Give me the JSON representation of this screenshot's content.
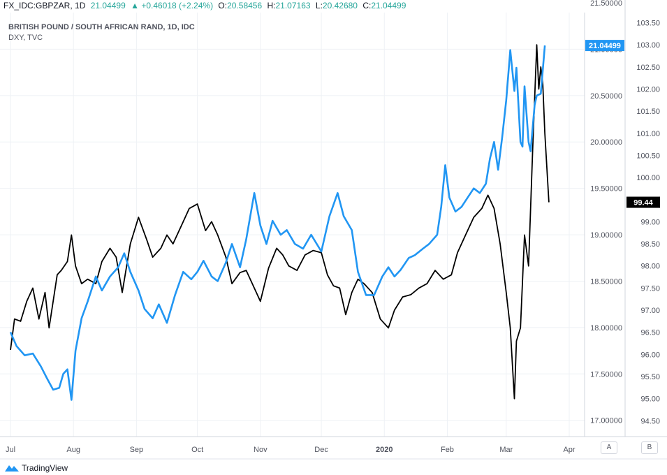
{
  "header": {
    "symbol": "FX_IDC:GBPZAR, 1D",
    "last": "21.04499",
    "change": "▲ +0.46018 (+2.24%)",
    "open_label": "O:",
    "open": "20.58456",
    "high_label": "H:",
    "high": "21.07163",
    "low_label": "L:",
    "low": "20.42680",
    "close_label": "C:",
    "close": "21.04499"
  },
  "legend": {
    "line1": "BRITISH POUND / SOUTH AFRICAN RAND, 1D, IDC",
    "line2": "DXY, TVC"
  },
  "price_badges": {
    "gbpzar": "21.04499",
    "dxy": "99.44"
  },
  "axis_buttons": {
    "a": "A",
    "b": "B"
  },
  "footer": {
    "brand": "TradingView"
  },
  "colors": {
    "gbpzar": "#2196f3",
    "dxy": "#000000",
    "grid": "#eef1f5",
    "up": "#26a69a"
  },
  "chart_data": {
    "type": "line",
    "x_tick_labels": [
      "Jul",
      "Aug",
      "Sep",
      "Oct",
      "Nov",
      "Dec",
      "2020",
      "Feb",
      "Mar",
      "Apr"
    ],
    "y_left": {
      "ticks": [
        "17.00000",
        "17.50000",
        "18.00000",
        "18.50000",
        "19.00000",
        "19.50000",
        "20.00000",
        "20.50000",
        "21.00000",
        "21.50000"
      ],
      "range": [
        16.9,
        21.5
      ]
    },
    "y_right": {
      "ticks": [
        "94.50",
        "95.00",
        "95.50",
        "96.00",
        "96.50",
        "97.00",
        "97.50",
        "98.00",
        "98.50",
        "99.00",
        "99.50",
        "100.00",
        "100.50",
        "101.00",
        "101.50",
        "102.00",
        "102.50",
        "103.00",
        "103.50"
      ],
      "range": [
        94.3,
        103.95
      ]
    },
    "series": [
      {
        "name": "BRITISH POUND / SOUTH AFRICAN RAND, 1D, IDC",
        "axis": "left",
        "points": [
          [
            "2019-07-01",
            17.95
          ],
          [
            "2019-07-04",
            17.8
          ],
          [
            "2019-07-08",
            17.7
          ],
          [
            "2019-07-12",
            17.72
          ],
          [
            "2019-07-16",
            17.58
          ],
          [
            "2019-07-19",
            17.45
          ],
          [
            "2019-07-22",
            17.33
          ],
          [
            "2019-07-25",
            17.35
          ],
          [
            "2019-07-27",
            17.5
          ],
          [
            "2019-07-29",
            17.55
          ],
          [
            "2019-07-31",
            17.22
          ],
          [
            "2019-08-02",
            17.75
          ],
          [
            "2019-08-05",
            18.1
          ],
          [
            "2019-08-08",
            18.28
          ],
          [
            "2019-08-12",
            18.55
          ],
          [
            "2019-08-15",
            18.4
          ],
          [
            "2019-08-19",
            18.55
          ],
          [
            "2019-08-23",
            18.65
          ],
          [
            "2019-08-26",
            18.8
          ],
          [
            "2019-08-29",
            18.6
          ],
          [
            "2019-09-02",
            18.4
          ],
          [
            "2019-09-05",
            18.2
          ],
          [
            "2019-09-09",
            18.1
          ],
          [
            "2019-09-12",
            18.25
          ],
          [
            "2019-09-16",
            18.05
          ],
          [
            "2019-09-20",
            18.35
          ],
          [
            "2019-09-24",
            18.6
          ],
          [
            "2019-09-28",
            18.52
          ],
          [
            "2019-10-01",
            18.6
          ],
          [
            "2019-10-04",
            18.72
          ],
          [
            "2019-10-08",
            18.55
          ],
          [
            "2019-10-11",
            18.5
          ],
          [
            "2019-10-15",
            18.7
          ],
          [
            "2019-10-18",
            18.9
          ],
          [
            "2019-10-22",
            18.65
          ],
          [
            "2019-10-25",
            18.95
          ],
          [
            "2019-10-29",
            19.45
          ],
          [
            "2019-11-01",
            19.1
          ],
          [
            "2019-11-04",
            18.9
          ],
          [
            "2019-11-07",
            19.15
          ],
          [
            "2019-11-11",
            19.0
          ],
          [
            "2019-11-14",
            19.05
          ],
          [
            "2019-11-18",
            18.9
          ],
          [
            "2019-11-22",
            18.85
          ],
          [
            "2019-11-26",
            19.0
          ],
          [
            "2019-12-01",
            18.82
          ],
          [
            "2019-12-05",
            19.2
          ],
          [
            "2019-12-09",
            19.45
          ],
          [
            "2019-12-12",
            19.2
          ],
          [
            "2019-12-16",
            19.05
          ],
          [
            "2019-12-19",
            18.6
          ],
          [
            "2019-12-23",
            18.35
          ],
          [
            "2019-12-27",
            18.35
          ],
          [
            "2019-12-31",
            18.55
          ],
          [
            "2020-01-03",
            18.65
          ],
          [
            "2020-01-06",
            18.55
          ],
          [
            "2020-01-09",
            18.62
          ],
          [
            "2020-01-13",
            18.75
          ],
          [
            "2020-01-16",
            18.78
          ],
          [
            "2020-01-20",
            18.85
          ],
          [
            "2020-01-23",
            18.9
          ],
          [
            "2020-01-27",
            19.0
          ],
          [
            "2020-01-29",
            19.3
          ],
          [
            "2020-01-31",
            19.75
          ],
          [
            "2020-02-02",
            19.4
          ],
          [
            "2020-02-05",
            19.25
          ],
          [
            "2020-02-08",
            19.3
          ],
          [
            "2020-02-11",
            19.4
          ],
          [
            "2020-02-14",
            19.5
          ],
          [
            "2020-02-17",
            19.45
          ],
          [
            "2020-02-20",
            19.55
          ],
          [
            "2020-02-22",
            19.82
          ],
          [
            "2020-02-24",
            20.0
          ],
          [
            "2020-02-26",
            19.7
          ],
          [
            "2020-02-28",
            20.05
          ],
          [
            "2020-03-01",
            20.45
          ],
          [
            "2020-03-03",
            20.99
          ],
          [
            "2020-03-05",
            20.55
          ],
          [
            "2020-03-06",
            20.8
          ],
          [
            "2020-03-08",
            20.0
          ],
          [
            "2020-03-09",
            19.95
          ],
          [
            "2020-03-10",
            20.6
          ],
          [
            "2020-03-12",
            20.0
          ],
          [
            "2020-03-13",
            19.9
          ],
          [
            "2020-03-15",
            20.4
          ],
          [
            "2020-03-16",
            20.5
          ],
          [
            "2020-03-18",
            20.52
          ],
          [
            "2020-03-20",
            21.04
          ]
        ]
      },
      {
        "name": "DXY, TVC",
        "axis": "right",
        "points": [
          [
            "2019-07-01",
            96.1
          ],
          [
            "2019-07-03",
            96.8
          ],
          [
            "2019-07-06",
            96.75
          ],
          [
            "2019-07-09",
            97.2
          ],
          [
            "2019-07-12",
            97.5
          ],
          [
            "2019-07-15",
            96.8
          ],
          [
            "2019-07-18",
            97.4
          ],
          [
            "2019-07-20",
            96.6
          ],
          [
            "2019-07-24",
            97.8
          ],
          [
            "2019-07-26",
            97.9
          ],
          [
            "2019-07-29",
            98.1
          ],
          [
            "2019-07-31",
            98.7
          ],
          [
            "2019-08-02",
            98.0
          ],
          [
            "2019-08-05",
            97.6
          ],
          [
            "2019-08-08",
            97.7
          ],
          [
            "2019-08-12",
            97.6
          ],
          [
            "2019-08-15",
            98.1
          ],
          [
            "2019-08-19",
            98.4
          ],
          [
            "2019-08-22",
            98.2
          ],
          [
            "2019-08-25",
            97.4
          ],
          [
            "2019-08-29",
            98.5
          ],
          [
            "2019-09-02",
            99.1
          ],
          [
            "2019-09-06",
            98.6
          ],
          [
            "2019-09-09",
            98.2
          ],
          [
            "2019-09-13",
            98.4
          ],
          [
            "2019-09-16",
            98.7
          ],
          [
            "2019-09-19",
            98.5
          ],
          [
            "2019-09-23",
            98.9
          ],
          [
            "2019-09-27",
            99.3
          ],
          [
            "2019-10-01",
            99.4
          ],
          [
            "2019-10-05",
            98.8
          ],
          [
            "2019-10-08",
            99.0
          ],
          [
            "2019-10-11",
            98.7
          ],
          [
            "2019-10-15",
            98.2
          ],
          [
            "2019-10-18",
            97.6
          ],
          [
            "2019-10-22",
            97.85
          ],
          [
            "2019-10-25",
            97.9
          ],
          [
            "2019-10-29",
            97.5
          ],
          [
            "2019-11-01",
            97.2
          ],
          [
            "2019-11-05",
            97.95
          ],
          [
            "2019-11-09",
            98.4
          ],
          [
            "2019-11-12",
            98.25
          ],
          [
            "2019-11-15",
            98.0
          ],
          [
            "2019-11-19",
            97.9
          ],
          [
            "2019-11-23",
            98.25
          ],
          [
            "2019-11-27",
            98.35
          ],
          [
            "2019-12-01",
            98.3
          ],
          [
            "2019-12-04",
            97.8
          ],
          [
            "2019-12-07",
            97.55
          ],
          [
            "2019-12-10",
            97.5
          ],
          [
            "2019-12-13",
            96.9
          ],
          [
            "2019-12-16",
            97.4
          ],
          [
            "2019-12-19",
            97.7
          ],
          [
            "2019-12-22",
            97.6
          ],
          [
            "2019-12-26",
            97.4
          ],
          [
            "2019-12-30",
            96.8
          ],
          [
            "2020-01-03",
            96.6
          ],
          [
            "2020-01-06",
            97.0
          ],
          [
            "2020-01-10",
            97.3
          ],
          [
            "2020-01-14",
            97.35
          ],
          [
            "2020-01-18",
            97.5
          ],
          [
            "2020-01-22",
            97.6
          ],
          [
            "2020-01-26",
            97.9
          ],
          [
            "2020-01-30",
            97.7
          ],
          [
            "2020-02-03",
            97.8
          ],
          [
            "2020-02-06",
            98.3
          ],
          [
            "2020-02-10",
            98.7
          ],
          [
            "2020-02-14",
            99.1
          ],
          [
            "2020-02-18",
            99.3
          ],
          [
            "2020-02-21",
            99.6
          ],
          [
            "2020-02-24",
            99.3
          ],
          [
            "2020-02-27",
            98.5
          ],
          [
            "2020-03-01",
            97.4
          ],
          [
            "2020-03-03",
            96.6
          ],
          [
            "2020-03-05",
            95.0
          ],
          [
            "2020-03-06",
            96.3
          ],
          [
            "2020-03-08",
            96.6
          ],
          [
            "2020-03-10",
            98.7
          ],
          [
            "2020-03-12",
            98.0
          ],
          [
            "2020-03-14",
            100.6
          ],
          [
            "2020-03-16",
            103.0
          ],
          [
            "2020-03-17",
            102.0
          ],
          [
            "2020-03-18",
            102.5
          ],
          [
            "2020-03-19",
            102.1
          ],
          [
            "2020-03-20",
            101.0
          ],
          [
            "2020-03-22",
            99.44
          ]
        ]
      }
    ]
  }
}
